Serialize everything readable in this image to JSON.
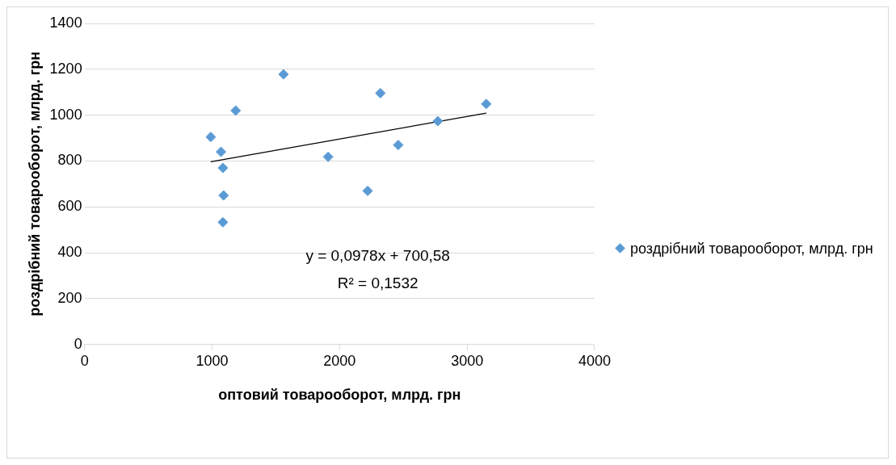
{
  "chart_data": {
    "type": "scatter",
    "xlabel": "оптовий товарооборот, млрд. грн",
    "ylabel": "роздрібний товарооборот, млрд. грн",
    "x": [
      990,
      1070,
      1085,
      1090,
      1085,
      1185,
      1560,
      1910,
      2220,
      2320,
      2460,
      2770,
      3150
    ],
    "series": [
      {
        "name": "роздрібний товарооборот, млрд. грн",
        "color": "#5b9bd5",
        "marker": "diamond",
        "values": [
          905,
          840,
          770,
          650,
          533,
          1020,
          1178,
          818,
          670,
          1096,
          870,
          974,
          1049
        ]
      },
      {
        "type": "line",
        "color": "#000000",
        "x": [
          990,
          3150
        ],
        "values": [
          797,
          1009
        ]
      }
    ],
    "annotations": [
      "y = 0,0978x + 700,58",
      "R² = 0,1532"
    ],
    "xlim": [
      0,
      4000
    ],
    "xticks": [
      0,
      1000,
      2000,
      3000,
      4000
    ],
    "ylim": [
      0,
      1400
    ],
    "yticks": [
      0,
      200,
      400,
      600,
      800,
      1000,
      1200,
      1400
    ],
    "grid": "y",
    "legend": "right"
  }
}
